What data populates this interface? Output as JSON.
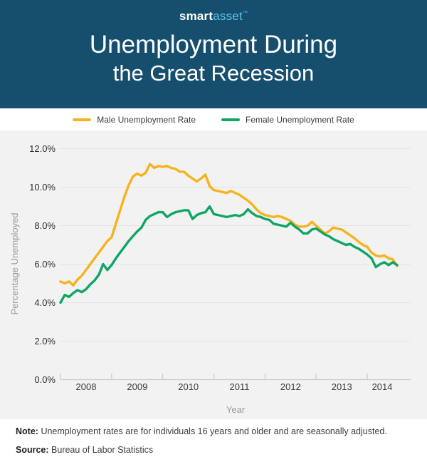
{
  "header": {
    "logo_smart": "smart",
    "logo_asset": "asset",
    "logo_tm": "™",
    "title_line1": "Unemployment During",
    "title_line2": "the Great Recession"
  },
  "legend": [
    {
      "label": "Male Unemployment Rate",
      "color": "#F5B31D"
    },
    {
      "label": "Female Unemployment Rate",
      "color": "#0FA565"
    }
  ],
  "footer": {
    "note_label": "Note:",
    "note_text": "Unemployment rates are for individuals 16 years and older and are seasonally adjusted.",
    "source_label": "Source:",
    "source_text": "Bureau of Labor Statistics"
  },
  "colors": {
    "header_bg": "#164F6E",
    "logo_accent": "#5BC2E7",
    "male_line": "#F5B31D",
    "female_line": "#0FA565",
    "chart_bg": "#F2F2F2",
    "gridline": "#E2E2E2",
    "axis_line": "#C9C9C9",
    "tick_label": "#2E2E2E",
    "axis_title": "#9B9B9B"
  },
  "chart_data": {
    "type": "line",
    "title": "Unemployment During the Great Recession",
    "xlabel": "Year",
    "ylabel": "Percentage Unemployed",
    "x_months": {
      "start": "2008-01",
      "end": "2014-08",
      "interval": "monthly"
    },
    "x_tick_labels": [
      "2008",
      "2009",
      "2010",
      "2011",
      "2012",
      "2013",
      "2014"
    ],
    "y_tick_labels": [
      "0.0%",
      "2.0%",
      "4.0%",
      "6.0%",
      "8.0%",
      "10.0%",
      "12.0%"
    ],
    "ylim": [
      0,
      12
    ],
    "grid": true,
    "legend_position": "top",
    "series": [
      {
        "name": "Male Unemployment Rate",
        "color": "#F5B31D",
        "values": [
          5.1,
          5.0,
          5.1,
          4.9,
          5.2,
          5.4,
          5.7,
          6.0,
          6.3,
          6.6,
          6.9,
          7.2,
          7.4,
          8.1,
          8.8,
          9.5,
          10.1,
          10.55,
          10.7,
          10.6,
          10.75,
          11.2,
          11.0,
          11.1,
          11.05,
          11.1,
          11.0,
          10.95,
          10.8,
          10.8,
          10.6,
          10.45,
          10.3,
          10.45,
          10.65,
          10.05,
          9.85,
          9.8,
          9.75,
          9.7,
          9.8,
          9.7,
          9.6,
          9.45,
          9.3,
          9.1,
          8.85,
          8.65,
          8.55,
          8.5,
          8.45,
          8.5,
          8.45,
          8.35,
          8.25,
          8.05,
          7.95,
          7.95,
          8.0,
          8.2,
          8.0,
          7.8,
          7.6,
          7.7,
          7.9,
          7.85,
          7.8,
          7.65,
          7.5,
          7.35,
          7.15,
          7.0,
          6.9,
          6.6,
          6.45,
          6.4,
          6.45,
          6.3,
          6.25,
          5.9
        ]
      },
      {
        "name": "Female Unemployment Rate",
        "color": "#0FA565",
        "values": [
          4.0,
          4.4,
          4.3,
          4.5,
          4.65,
          4.55,
          4.7,
          4.95,
          5.15,
          5.45,
          6.0,
          5.7,
          5.95,
          6.3,
          6.6,
          6.9,
          7.2,
          7.45,
          7.7,
          7.9,
          8.3,
          8.5,
          8.6,
          8.7,
          8.7,
          8.45,
          8.6,
          8.7,
          8.75,
          8.8,
          8.8,
          8.35,
          8.55,
          8.65,
          8.7,
          9.0,
          8.6,
          8.55,
          8.5,
          8.45,
          8.5,
          8.55,
          8.5,
          8.6,
          8.85,
          8.65,
          8.5,
          8.45,
          8.35,
          8.3,
          8.1,
          8.05,
          8.0,
          7.95,
          8.15,
          7.95,
          7.8,
          7.6,
          7.6,
          7.8,
          7.85,
          7.7,
          7.55,
          7.45,
          7.3,
          7.2,
          7.1,
          7.0,
          7.05,
          6.9,
          6.8,
          6.65,
          6.5,
          6.3,
          5.85,
          6.0,
          6.1,
          5.95,
          6.1,
          5.95
        ]
      }
    ]
  }
}
